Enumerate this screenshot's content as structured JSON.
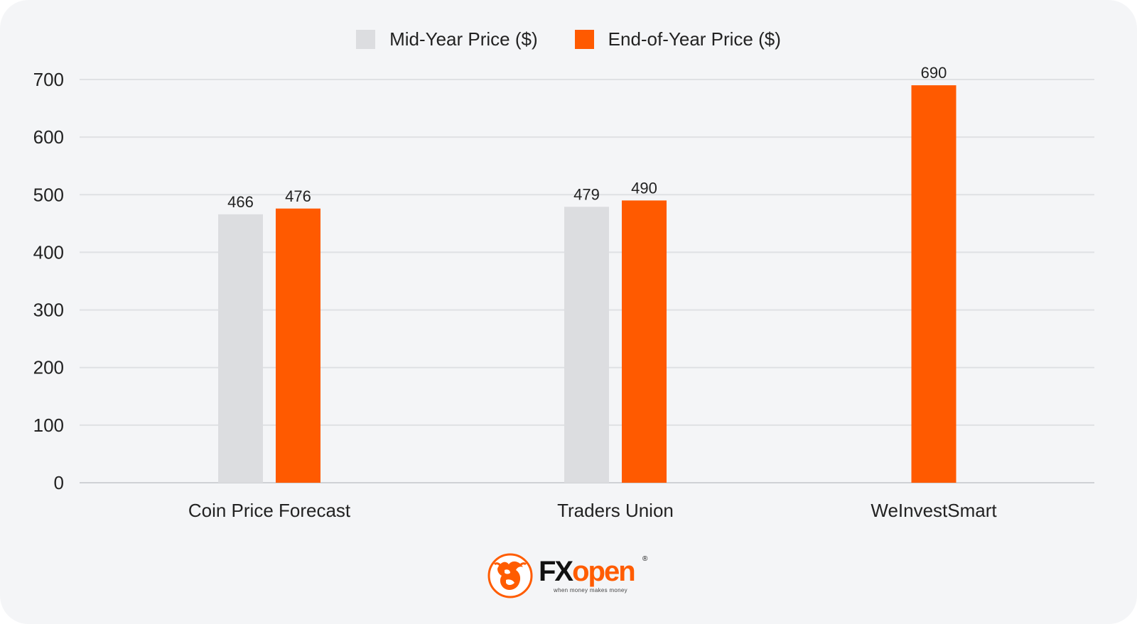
{
  "chart_data": {
    "type": "bar",
    "categories": [
      "Coin Price Forecast",
      "Traders Union",
      "WeInvestSmart"
    ],
    "series": [
      {
        "name": "Mid-Year Price ($)",
        "color": "#dcdde0",
        "values": [
          466,
          479,
          null
        ]
      },
      {
        "name": "End-of-Year Price ($)",
        "color": "#ff5a00",
        "values": [
          476,
          490,
          690
        ]
      }
    ],
    "value_labels": [
      [
        "466",
        "479",
        ""
      ],
      [
        "476",
        "490",
        "690"
      ]
    ],
    "ylim": [
      0,
      700
    ],
    "yticks": [
      0,
      100,
      200,
      300,
      400,
      500,
      600,
      700
    ],
    "grid": true,
    "legend_position": "top-center"
  },
  "brand": {
    "icon": "fxopen-bull-logo",
    "name_fx": "FX",
    "name_open": "open",
    "registered": "®",
    "tagline": "when money makes money",
    "accent": "#ff5c00"
  }
}
